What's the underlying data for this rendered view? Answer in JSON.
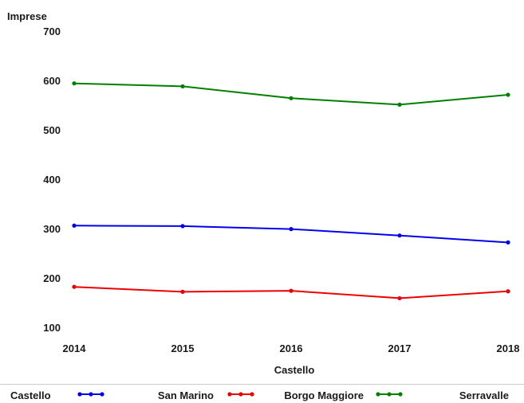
{
  "chart_data": {
    "type": "line",
    "ylabel": "Imprese",
    "xlabel": "Castello",
    "categories": [
      "2014",
      "2015",
      "2016",
      "2017",
      "2018"
    ],
    "ylim": [
      100,
      700
    ],
    "yticks": [
      100,
      200,
      300,
      400,
      500,
      600,
      700
    ],
    "grid": false,
    "legend": {
      "position": "bottom",
      "title": "Castello"
    },
    "series": [
      {
        "name": "San Marino",
        "color": "#0000ee",
        "values": [
          306,
          305,
          299,
          286,
          272
        ]
      },
      {
        "name": "Borgo Maggiore",
        "color": "#ee0000",
        "values": [
          182,
          172,
          174,
          159,
          173
        ]
      },
      {
        "name": "Serravalle",
        "color": "#008000",
        "values": [
          594,
          588,
          564,
          551,
          571
        ]
      }
    ]
  }
}
